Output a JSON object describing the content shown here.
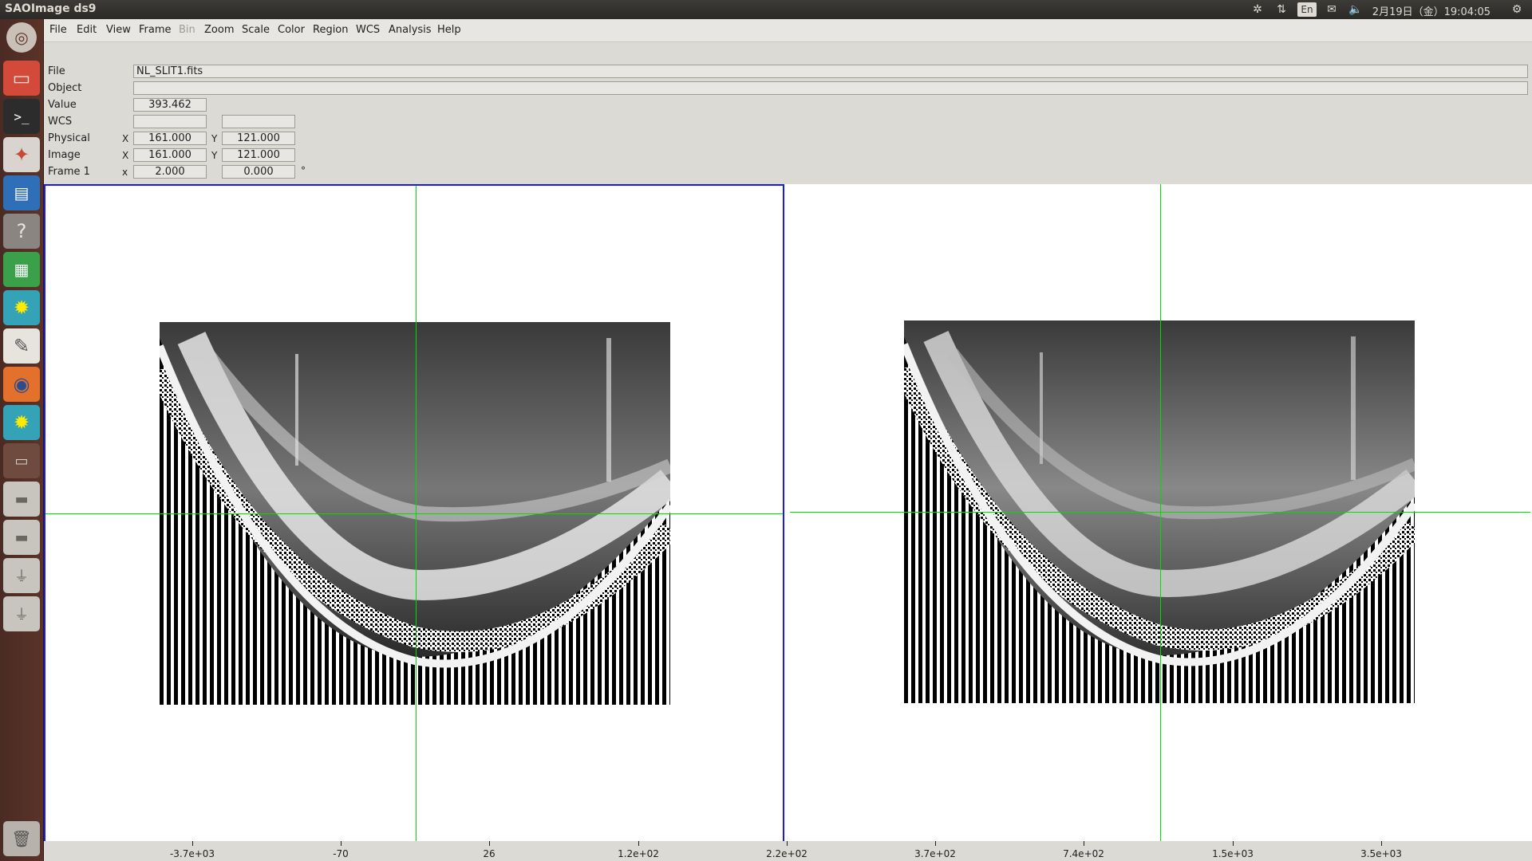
{
  "top_panel": {
    "app_title": "SAOImage ds9",
    "lang": "En",
    "clock": "2月19日（金）19:04:05"
  },
  "launcher": {
    "items": [
      "ubuntu-dash-icon",
      "file-manager-icon",
      "terminal-icon",
      "system-settings-icon",
      "writer-icon",
      "help-icon",
      "calc-icon",
      "sun-icon",
      "text-editor-icon",
      "firefox-icon",
      "sun-icon",
      "window-icon",
      "drive-icon",
      "drive-icon",
      "usb-drive-icon",
      "usb-drive-icon",
      "trash-icon"
    ]
  },
  "menu": {
    "file": "File",
    "edit": "Edit",
    "view": "View",
    "frame": "Frame",
    "bin": "Bin",
    "zoom": "Zoom",
    "scale": "Scale",
    "color": "Color",
    "region": "Region",
    "wcs": "WCS",
    "analysis": "Analysis",
    "help": "Help"
  },
  "info": {
    "file_label": "File",
    "file_value": "NL_SLIT1.fits",
    "object_label": "Object",
    "object_value": "",
    "value_label": "Value",
    "value_value": "393.462",
    "wcs_label": "WCS",
    "wcs_a": "",
    "wcs_b": "",
    "physical_label": "Physical",
    "physical_x_axis": "X",
    "physical_x": "161.000",
    "physical_y_axis": "Y",
    "physical_y": "121.000",
    "image_label": "Image",
    "image_x_axis": "X",
    "image_x": "161.000",
    "image_y_axis": "Y",
    "image_y": "121.000",
    "frame_label": "Frame 1",
    "frame_axis": "x",
    "frame_zoom": "2.000",
    "frame_angle": "0.000",
    "frame_degree": "°"
  },
  "colorbar": {
    "ticks": [
      "-3.7e+03",
      "-70",
      "26",
      "1.2e+02",
      "2.2e+02",
      "3.7e+02",
      "7.4e+02",
      "1.5e+03",
      "3.5e+03"
    ]
  }
}
